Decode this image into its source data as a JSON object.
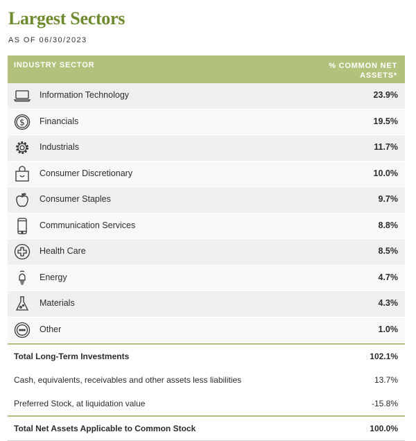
{
  "header": {
    "title": "Largest Sectors",
    "as_of": "AS OF 06/30/2023"
  },
  "table": {
    "col_sector": "INDUSTRY SECTOR",
    "col_pct_line1": "% COMMON NET",
    "col_pct_line2": "ASSETS*",
    "rows": [
      {
        "icon": "laptop-icon",
        "label": "Information Technology",
        "value": "23.9%"
      },
      {
        "icon": "dollar-coin-icon",
        "label": "Financials",
        "value": "19.5%"
      },
      {
        "icon": "gear-icon",
        "label": "Industrials",
        "value": "11.7%"
      },
      {
        "icon": "shopping-bag-icon",
        "label": "Consumer Discretionary",
        "value": "10.0%"
      },
      {
        "icon": "apple-icon",
        "label": "Consumer Staples",
        "value": "9.7%"
      },
      {
        "icon": "smartphone-icon",
        "label": "Communication Services",
        "value": "8.8%"
      },
      {
        "icon": "medical-cross-icon",
        "label": "Health Care",
        "value": "8.5%"
      },
      {
        "icon": "lightbulb-icon",
        "label": "Energy",
        "value": "4.7%"
      },
      {
        "icon": "flask-icon",
        "label": "Materials",
        "value": "4.3%"
      },
      {
        "icon": "ellipsis-circle-icon",
        "label": "Other",
        "value": "1.0%"
      }
    ]
  },
  "summary": {
    "total_long_term": {
      "label": "Total Long-Term Investments",
      "value": "102.1%"
    },
    "cash": {
      "label": "Cash, equivalents, receivables and other assets less liabilities",
      "value": "13.7%"
    },
    "preferred": {
      "label": "Preferred Stock, at liquidation value",
      "value": "-15.8%"
    },
    "total_net": {
      "label": "Total Net Assets Applicable to Common Stock",
      "value": "100.0%"
    }
  }
}
